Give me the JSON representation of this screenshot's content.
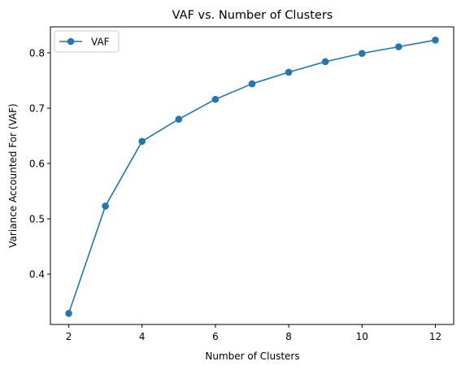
{
  "chart_data": {
    "type": "line",
    "title": "VAF vs. Number of Clusters",
    "xlabel": "Number of Clusters",
    "ylabel": "Variance Accounted For (VAF)",
    "xlim": [
      1.5,
      12.5
    ],
    "ylim": [
      0.309,
      0.847
    ],
    "xticks": [
      2,
      4,
      6,
      8,
      10,
      12
    ],
    "yticks": [
      0.4,
      0.5,
      0.6,
      0.7,
      0.8
    ],
    "grid": false,
    "legend_position": "top-left",
    "series": [
      {
        "name": "VAF",
        "color": "#1f77b4",
        "marker": "circle",
        "x": [
          2,
          3,
          4,
          5,
          6,
          7,
          8,
          9,
          10,
          11,
          12
        ],
        "y": [
          0.329,
          0.523,
          0.64,
          0.68,
          0.716,
          0.744,
          0.765,
          0.784,
          0.799,
          0.811,
          0.823
        ]
      }
    ]
  }
}
